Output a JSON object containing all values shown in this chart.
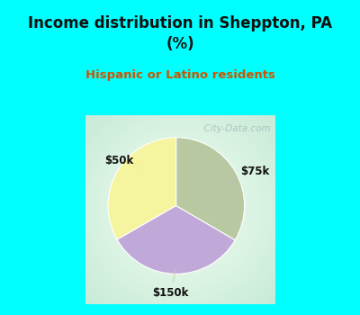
{
  "title": "Income distribution in Sheppton, PA\n(%)",
  "subtitle": "Hispanic or Latino residents",
  "title_color": "#111111",
  "subtitle_color": "#cc5500",
  "top_bg_color": "#00FFFF",
  "border_color": "#00FFFF",
  "slices": [
    {
      "label": "$50k",
      "value": 33.3,
      "color": "#f5f5a0"
    },
    {
      "label": "$75k",
      "value": 33.3,
      "color": "#c0a8d8"
    },
    {
      "label": "$150k",
      "value": 33.4,
      "color": "#b8c8a0"
    }
  ],
  "startangle": 90,
  "watermark": "  City-Data.com",
  "watermark_color": "#aabbbb",
  "label_color": "#111111",
  "line_color": "#ccccaa"
}
